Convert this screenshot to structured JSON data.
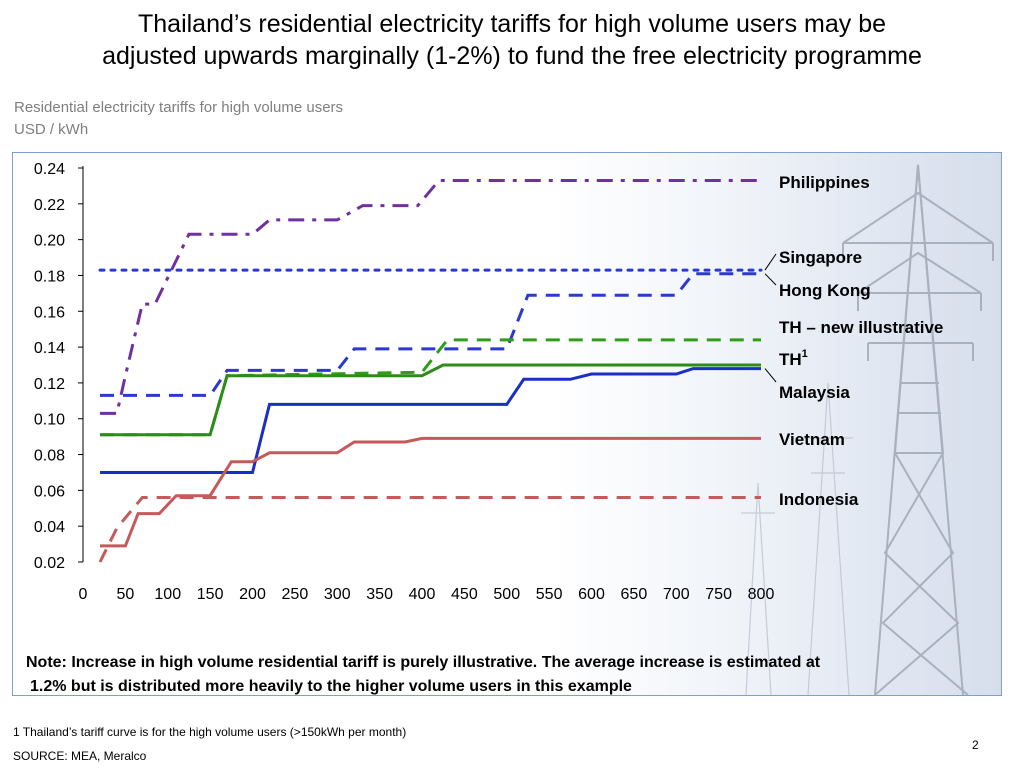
{
  "slide": {
    "title_line1": "Thailand’s residential electricity tariffs for high volume users may be",
    "title_line2": "adjusted upwards marginally (1-2%) to fund the free electricity programme",
    "subtitle_line1": "Residential electricity tariffs for high volume users",
    "subtitle_line2": "USD / kWh",
    "note_line1": "Note: Increase in high volume residential tariff is purely illustrative. The average increase is estimated at",
    "note_line2": "1.2% but is distributed more heavily to the higher volume users in this example",
    "footnote": "1 Thailand’s tariff curve is for the high volume users (>150kWh per month)",
    "source": "SOURCE: MEA, Meralco",
    "page_number": "2"
  },
  "chart_data": {
    "type": "line",
    "title": "",
    "xlabel": "",
    "ylabel": "USD / kWh",
    "xlim": [
      0,
      800
    ],
    "ylim": [
      0.02,
      0.24
    ],
    "grid": false,
    "legend": "right-side labels",
    "x_ticks": [
      "0",
      "50",
      "100",
      "150",
      "200",
      "250",
      "300",
      "350",
      "400",
      "450",
      "500",
      "550",
      "600",
      "650",
      "700",
      "750",
      "800"
    ],
    "y_ticks": [
      "0.24",
      "0.22",
      "0.20",
      "0.18",
      "0.16",
      "0.14",
      "0.12",
      "0.10",
      "0.08",
      "0.06",
      "0.04",
      "0.02"
    ],
    "series": [
      {
        "name": "Philippines",
        "color": "#7030a0",
        "style": "dashdot",
        "points": [
          [
            20,
            0.103
          ],
          [
            40,
            0.103
          ],
          [
            50,
            0.124
          ],
          [
            70,
            0.164
          ],
          [
            85,
            0.164
          ],
          [
            125,
            0.203
          ],
          [
            200,
            0.203
          ],
          [
            220,
            0.211
          ],
          [
            300,
            0.211
          ],
          [
            330,
            0.219
          ],
          [
            395,
            0.219
          ],
          [
            420,
            0.233
          ],
          [
            800,
            0.233
          ]
        ]
      },
      {
        "name": "Singapore",
        "color": "#2b39d1",
        "style": "dotted",
        "points": [
          [
            20,
            0.183
          ],
          [
            800,
            0.183
          ]
        ]
      },
      {
        "name": "Hong Kong",
        "color": "#2b39d1",
        "style": "dashed",
        "points": [
          [
            20,
            0.113
          ],
          [
            150,
            0.113
          ],
          [
            170,
            0.127
          ],
          [
            300,
            0.127
          ],
          [
            320,
            0.139
          ],
          [
            500,
            0.139
          ],
          [
            525,
            0.169
          ],
          [
            700,
            0.169
          ],
          [
            720,
            0.181
          ],
          [
            800,
            0.181
          ]
        ]
      },
      {
        "name": "TH – new illustrative",
        "color": "#2e9e1a",
        "style": "dashed",
        "points": [
          [
            20,
            0.091
          ],
          [
            150,
            0.091
          ],
          [
            170,
            0.124
          ],
          [
            400,
            0.126
          ],
          [
            430,
            0.144
          ],
          [
            800,
            0.144
          ]
        ]
      },
      {
        "name": "TH",
        "label_sup": "1",
        "color": "#2e8b1a",
        "style": "solid",
        "points": [
          [
            20,
            0.091
          ],
          [
            150,
            0.091
          ],
          [
            170,
            0.124
          ],
          [
            400,
            0.124
          ],
          [
            425,
            0.13
          ],
          [
            800,
            0.13
          ]
        ]
      },
      {
        "name": "Malaysia",
        "color": "#1a2fc8",
        "style": "solid",
        "points": [
          [
            20,
            0.07
          ],
          [
            200,
            0.07
          ],
          [
            220,
            0.108
          ],
          [
            500,
            0.108
          ],
          [
            520,
            0.122
          ],
          [
            575,
            0.122
          ],
          [
            600,
            0.125
          ],
          [
            700,
            0.125
          ],
          [
            720,
            0.128
          ],
          [
            800,
            0.128
          ]
        ]
      },
      {
        "name": "Vietnam",
        "color": "#c55a5a",
        "style": "solid",
        "points": [
          [
            20,
            0.029
          ],
          [
            50,
            0.029
          ],
          [
            65,
            0.047
          ],
          [
            90,
            0.047
          ],
          [
            110,
            0.057
          ],
          [
            150,
            0.057
          ],
          [
            175,
            0.076
          ],
          [
            200,
            0.076
          ],
          [
            220,
            0.081
          ],
          [
            300,
            0.081
          ],
          [
            320,
            0.087
          ],
          [
            380,
            0.087
          ],
          [
            400,
            0.089
          ],
          [
            800,
            0.089
          ]
        ]
      },
      {
        "name": "Indonesia",
        "color": "#c55a5a",
        "style": "dashed",
        "points": [
          [
            20,
            0.02
          ],
          [
            40,
            0.039
          ],
          [
            70,
            0.056
          ],
          [
            800,
            0.056
          ]
        ]
      }
    ]
  }
}
